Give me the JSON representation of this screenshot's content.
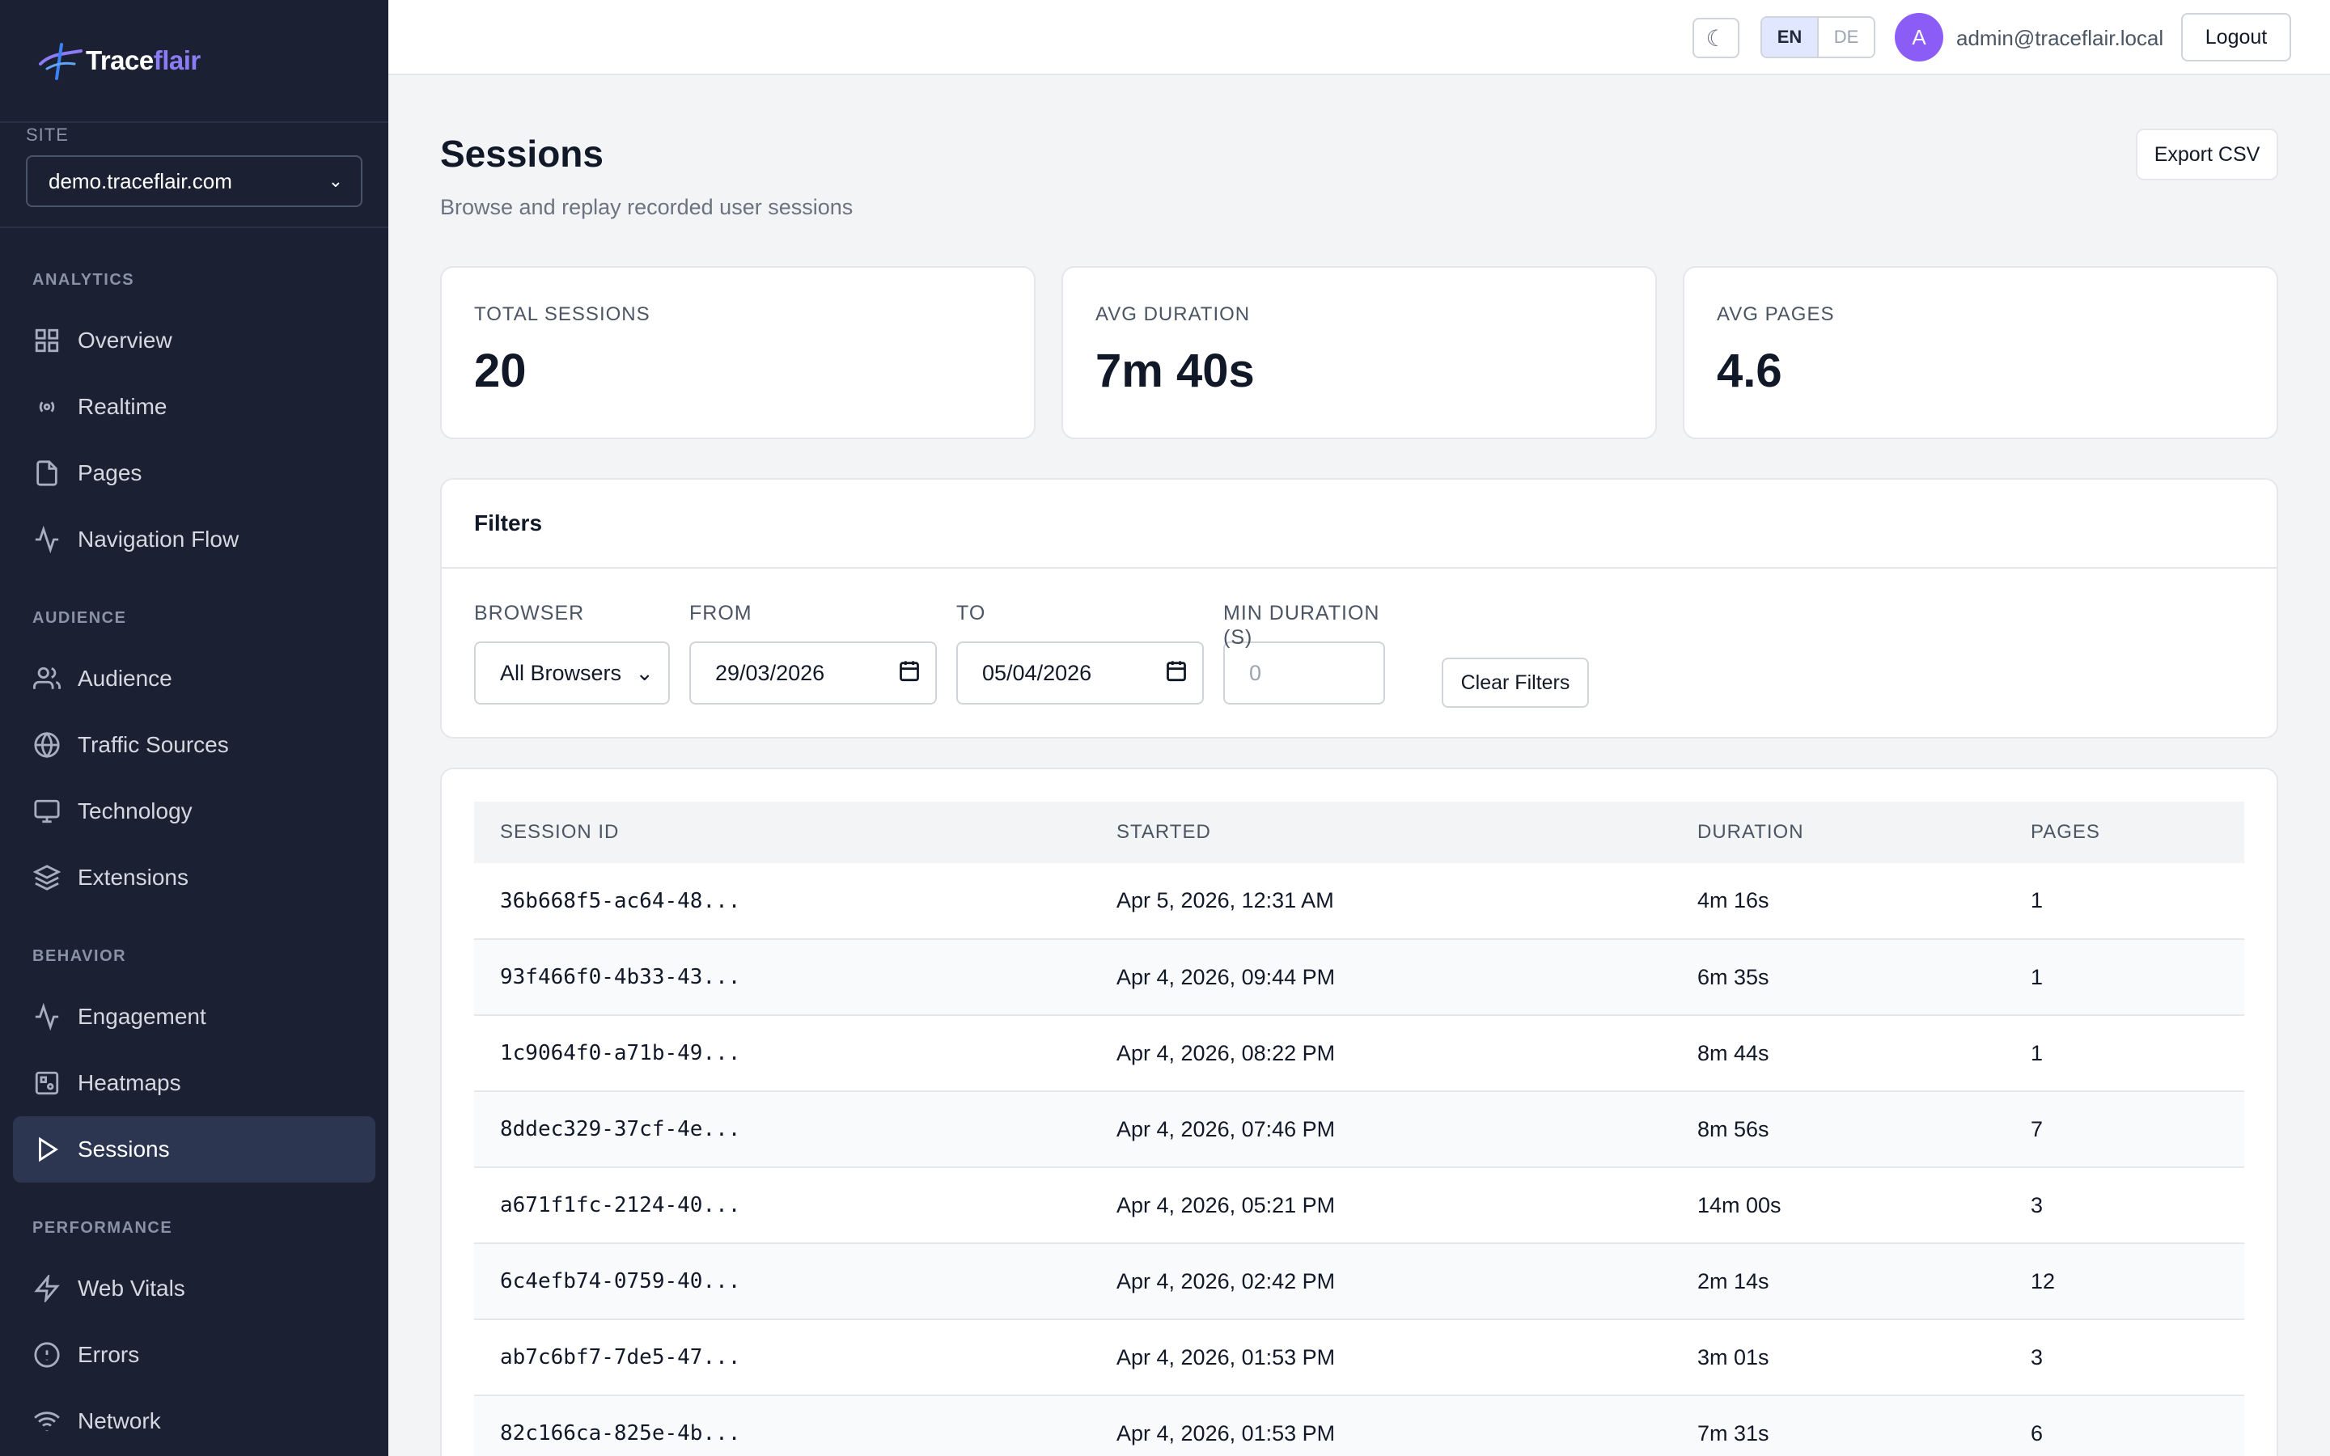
{
  "brand": {
    "name_main": "Trace",
    "name_accent": "flair"
  },
  "site": {
    "label": "SITE",
    "selected": "demo.traceflair.com"
  },
  "nav": {
    "analytics": {
      "title": "ANALYTICS",
      "items": [
        {
          "label": "Overview",
          "icon": "grid-icon"
        },
        {
          "label": "Realtime",
          "icon": "broadcast-icon"
        },
        {
          "label": "Pages",
          "icon": "file-icon"
        },
        {
          "label": "Navigation Flow",
          "icon": "activity-icon"
        }
      ]
    },
    "audience": {
      "title": "AUDIENCE",
      "items": [
        {
          "label": "Audience",
          "icon": "users-icon"
        },
        {
          "label": "Traffic Sources",
          "icon": "globe-icon"
        },
        {
          "label": "Technology",
          "icon": "monitor-icon"
        },
        {
          "label": "Extensions",
          "icon": "layers-icon"
        }
      ]
    },
    "behavior": {
      "title": "BEHAVIOR",
      "items": [
        {
          "label": "Engagement",
          "icon": "activity-icon"
        },
        {
          "label": "Heatmaps",
          "icon": "heatmap-icon"
        },
        {
          "label": "Sessions",
          "icon": "play-icon",
          "active": true
        }
      ]
    },
    "performance": {
      "title": "PERFORMANCE",
      "items": [
        {
          "label": "Web Vitals",
          "icon": "zap-icon"
        },
        {
          "label": "Errors",
          "icon": "alert-circle-icon"
        },
        {
          "label": "Network",
          "icon": "wifi-icon"
        }
      ]
    }
  },
  "topbar": {
    "theme_icon": "☾",
    "lang_en": "EN",
    "lang_de": "DE",
    "avatar_initial": "A",
    "user_email": "admin@traceflair.local",
    "logout_label": "Logout"
  },
  "page": {
    "title": "Sessions",
    "subtitle": "Browse and replay recorded user sessions",
    "export_label": "Export CSV"
  },
  "stats": [
    {
      "label": "TOTAL SESSIONS",
      "value": "20"
    },
    {
      "label": "AVG DURATION",
      "value": "7m 40s"
    },
    {
      "label": "AVG PAGES",
      "value": "4.6"
    }
  ],
  "filters": {
    "title": "Filters",
    "browser_label": "BROWSER",
    "browser_value": "All Browsers",
    "from_label": "FROM",
    "from_value": "29/03/2026",
    "to_label": "TO",
    "to_value": "05/04/2026",
    "min_duration_label": "MIN DURATION (S)",
    "min_duration_placeholder": "0",
    "clear_label": "Clear Filters"
  },
  "table": {
    "headers": [
      "SESSION ID",
      "STARTED",
      "DURATION",
      "PAGES"
    ],
    "rows": [
      [
        "36b668f5-ac64-48...",
        "Apr 5, 2026, 12:31 AM",
        "4m 16s",
        "1"
      ],
      [
        "93f466f0-4b33-43...",
        "Apr 4, 2026, 09:44 PM",
        "6m 35s",
        "1"
      ],
      [
        "1c9064f0-a71b-49...",
        "Apr 4, 2026, 08:22 PM",
        "8m 44s",
        "1"
      ],
      [
        "8ddec329-37cf-4e...",
        "Apr 4, 2026, 07:46 PM",
        "8m 56s",
        "7"
      ],
      [
        "a671f1fc-2124-40...",
        "Apr 4, 2026, 05:21 PM",
        "14m 00s",
        "3"
      ],
      [
        "6c4efb74-0759-40...",
        "Apr 4, 2026, 02:42 PM",
        "2m 14s",
        "12"
      ],
      [
        "ab7c6bf7-7de5-47...",
        "Apr 4, 2026, 01:53 PM",
        "3m 01s",
        "3"
      ],
      [
        "82c166ca-825e-4b...",
        "Apr 4, 2026, 01:53 PM",
        "7m 31s",
        "6"
      ]
    ]
  }
}
